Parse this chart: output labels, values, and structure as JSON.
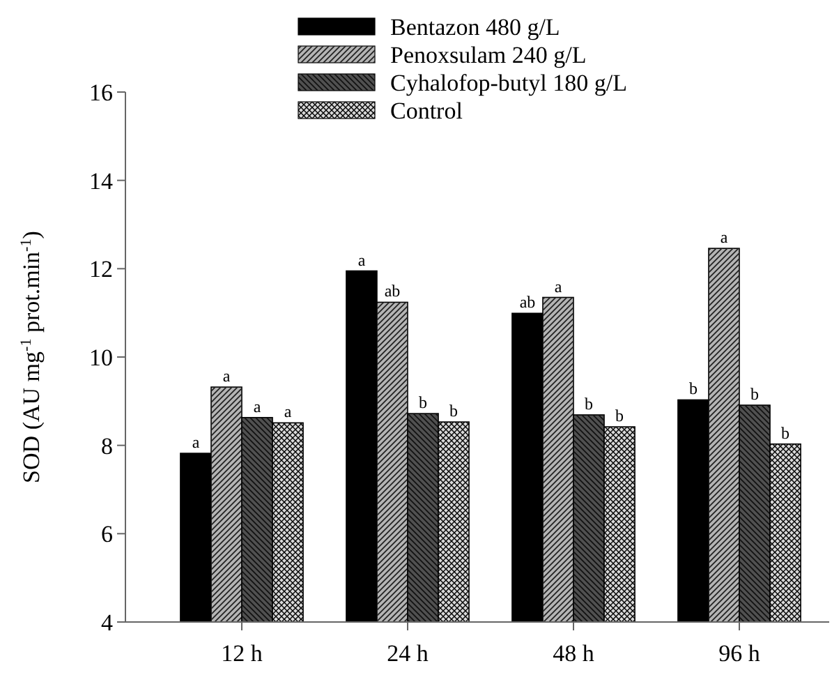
{
  "chart_data": {
    "type": "bar",
    "categories": [
      "12 h",
      "24 h",
      "48 h",
      "96 h"
    ],
    "ylabel": "SOD (AU mg$^{-1}$ prot.min$^{-1}$)",
    "ylim": [
      4,
      16
    ],
    "yticks": [
      4,
      6,
      8,
      10,
      12,
      14,
      16
    ],
    "grid": false,
    "legend": "top",
    "series": [
      {
        "name": "Bentazon 480 g/L",
        "color": "#000000",
        "values": [
          7.82,
          11.95,
          10.99,
          9.03
        ],
        "value_labels": [
          "a",
          "a",
          "ab",
          "b"
        ]
      },
      {
        "name": "Penoxsulam 240 g/L",
        "color": "#b4b4b4",
        "values": [
          9.32,
          11.24,
          11.35,
          12.46
        ],
        "value_labels": [
          "a",
          "ab",
          "a",
          "a"
        ]
      },
      {
        "name": "Cyhalofop-butyl 180 g/L",
        "color": "#505050",
        "values": [
          8.63,
          8.72,
          8.69,
          8.91
        ],
        "value_labels": [
          "a",
          "b",
          "b",
          "b"
        ]
      },
      {
        "name": "Control",
        "color": "#d8d8d8",
        "values": [
          8.51,
          8.53,
          8.42,
          8.03
        ],
        "value_labels": [
          "a",
          "b",
          "b",
          "b"
        ]
      }
    ]
  }
}
